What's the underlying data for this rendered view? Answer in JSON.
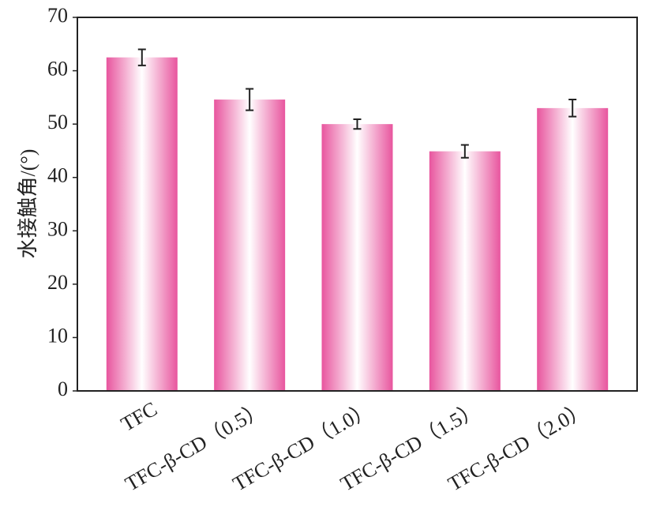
{
  "chart_data": {
    "type": "bar",
    "y_label": "水接触角/(°)",
    "categories": [
      "TFC",
      "TFC-β-CD（0.5）",
      "TFC-β-CD（1.0）",
      "TFC-β-CD（1.5）",
      "TFC-β-CD（2.0）"
    ],
    "values": [
      62.5,
      54.6,
      50.0,
      44.9,
      53.0
    ],
    "errors": [
      1.5,
      2.0,
      0.9,
      1.2,
      1.6
    ],
    "color": "#e8559e",
    "ylim": [
      0,
      70
    ],
    "yticks": [
      0,
      10,
      20,
      30,
      40,
      50,
      60,
      70
    ],
    "grid": false
  }
}
